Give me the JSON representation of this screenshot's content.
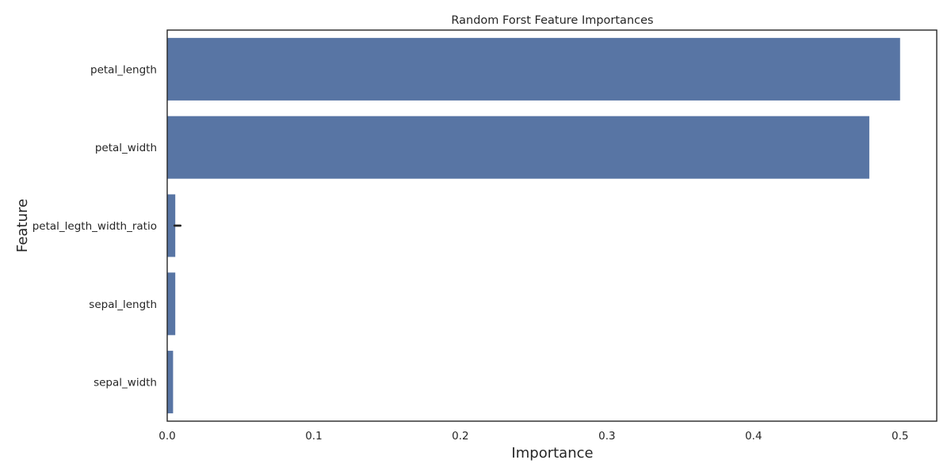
{
  "chart_data": {
    "type": "bar",
    "orientation": "horizontal",
    "title": "Random Forst Feature Importances",
    "xlabel": "Importance",
    "ylabel": "Feature",
    "categories": [
      "petal_length",
      "petal_width",
      "petal_legth_width_ratio",
      "sepal_length",
      "sepal_width"
    ],
    "values": [
      0.5,
      0.479,
      0.0055,
      0.0055,
      0.004
    ],
    "error_bars": [
      null,
      null,
      [
        0.005,
        0.009
      ],
      null,
      null
    ],
    "xlim": [
      0,
      0.525
    ],
    "xticks": [
      0.0,
      0.1,
      0.2,
      0.3,
      0.4,
      0.5
    ],
    "xtick_labels": [
      "0.0",
      "0.1",
      "0.2",
      "0.3",
      "0.4",
      "0.5"
    ],
    "grid": false,
    "legend": "none",
    "bar_color": "#5875a4",
    "frame_color": "#262626",
    "text_color": "#262626"
  }
}
